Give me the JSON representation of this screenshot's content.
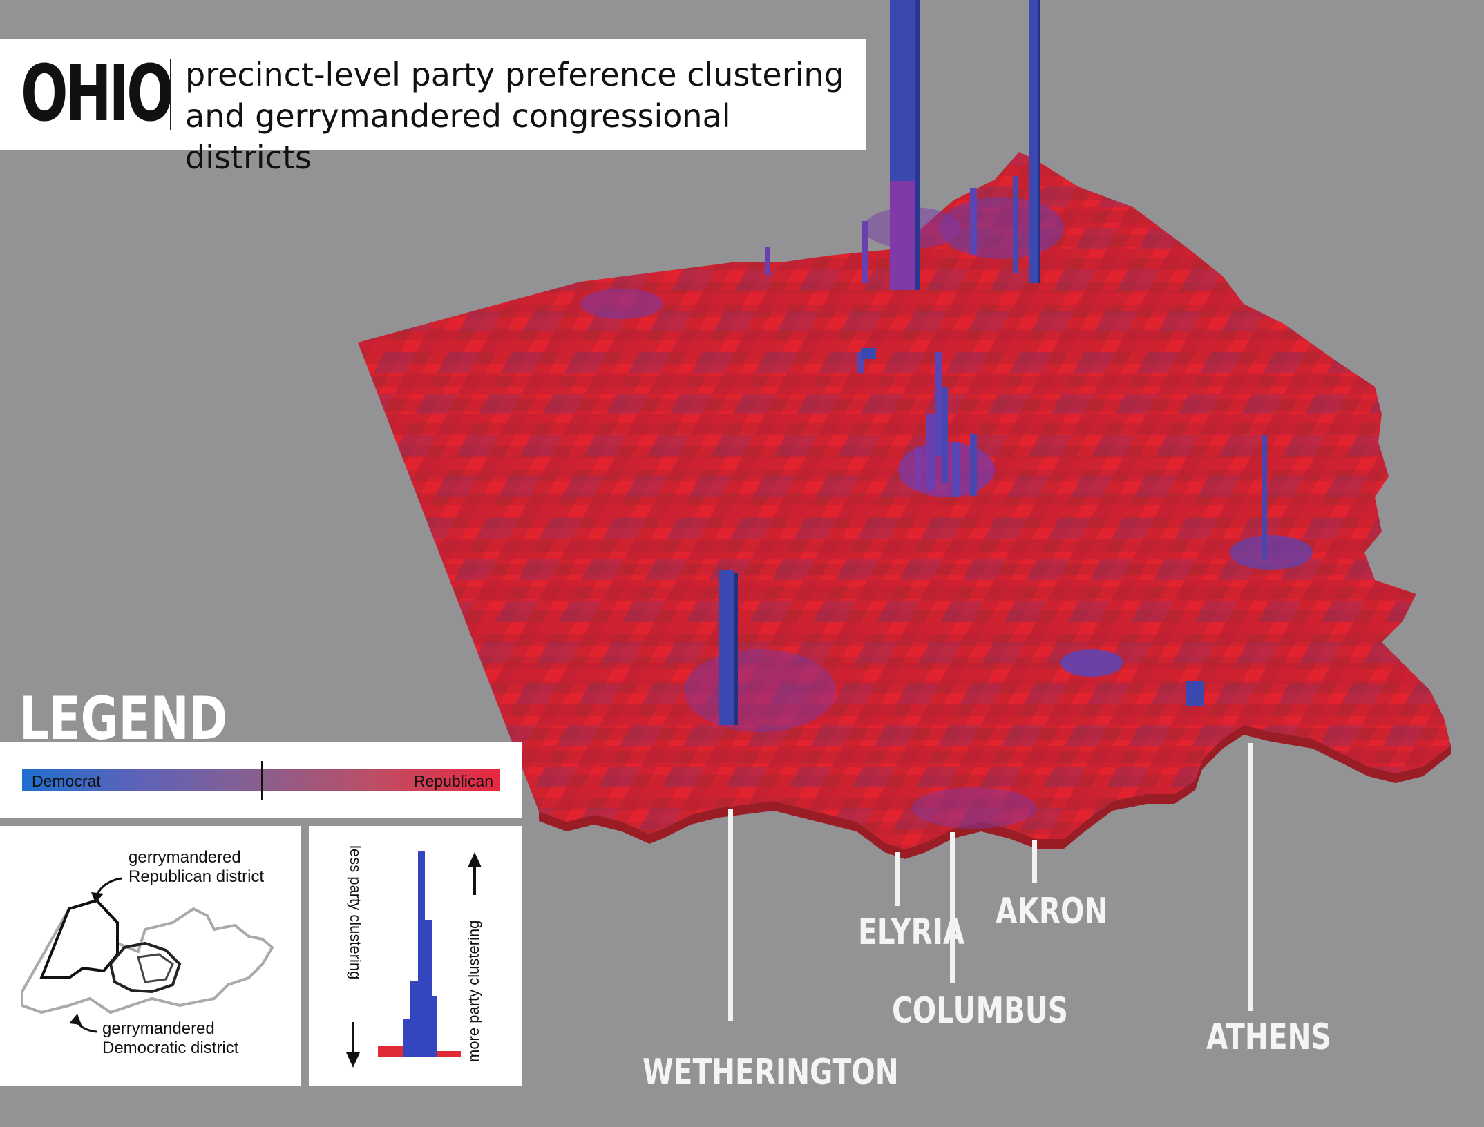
{
  "title": {
    "main": "OHIO",
    "subtitle_line1": "precinct-level party preference clustering",
    "subtitle_line2": "and gerrymandered congressional districts"
  },
  "cities": [
    {
      "name": "WETHERINGTON"
    },
    {
      "name": "ELYRIA"
    },
    {
      "name": "AKRON"
    },
    {
      "name": "COLUMBUS"
    },
    {
      "name": "ATHENS"
    }
  ],
  "legend": {
    "heading": "LEGEND",
    "gradient_left": "Democrat",
    "gradient_right": "Republican",
    "republican_district": [
      "gerrymandered",
      "Republican district"
    ],
    "democratic_district": [
      "gerrymandered",
      "Democratic district"
    ],
    "less_clustering": "less  party clustering",
    "more_clustering": "more party clustering"
  },
  "colors": {
    "republican": "#d8222e",
    "democrat": "#3c4fb3",
    "mixed": "#8c3aa0",
    "background": "#939396"
  }
}
